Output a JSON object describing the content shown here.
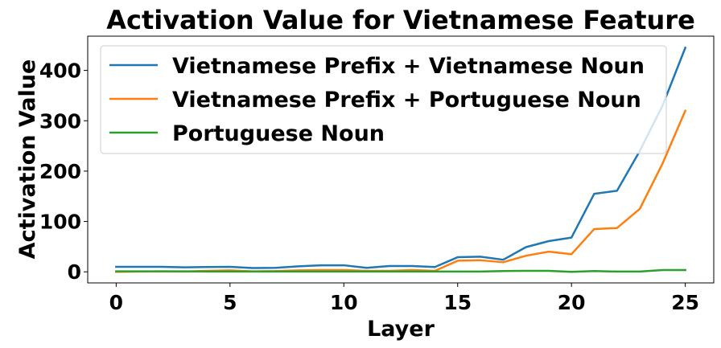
{
  "chart_data": {
    "type": "line",
    "title": "Activation Value for Vietnamese Feature",
    "xlabel": "Layer",
    "ylabel": "Activation Value",
    "x": [
      0,
      1,
      2,
      3,
      4,
      5,
      6,
      7,
      8,
      9,
      10,
      11,
      12,
      13,
      14,
      15,
      16,
      17,
      18,
      19,
      20,
      21,
      22,
      23,
      24,
      25
    ],
    "xlim": [
      -1.25,
      26.25
    ],
    "ylim": [
      -22,
      468
    ],
    "xticks": [
      0,
      5,
      10,
      15,
      20,
      25
    ],
    "yticks": [
      0,
      100,
      200,
      300,
      400
    ],
    "xtick_labels": [
      "0",
      "5",
      "10",
      "15",
      "20",
      "25"
    ],
    "ytick_labels": [
      "0",
      "100",
      "200",
      "300",
      "400"
    ],
    "grid": false,
    "legend_position": "upper-left",
    "series": [
      {
        "name": "Vietnamese Prefix + Vietnamese Noun",
        "color": "#1f77b4",
        "values": [
          10,
          10,
          10,
          9,
          9.5,
          10,
          7.5,
          8,
          11,
          13,
          13,
          8,
          11.5,
          11.5,
          9.5,
          29,
          30,
          24,
          49,
          61,
          68,
          155,
          161,
          240,
          330,
          445
        ]
      },
      {
        "name": "Vietnamese Prefix + Portuguese Noun",
        "color": "#ff7f0e",
        "values": [
          0,
          0.5,
          1,
          0.5,
          2,
          3,
          1,
          1.5,
          3,
          3.5,
          3.5,
          2,
          2,
          3.5,
          2,
          22,
          23,
          19,
          32,
          40,
          35,
          85,
          87,
          125,
          215,
          320
        ]
      },
      {
        "name": "Portuguese Noun",
        "color": "#2ca02c",
        "values": [
          1,
          1,
          1,
          1,
          0.5,
          0.5,
          0.5,
          0.5,
          0.5,
          0.5,
          0.5,
          0.5,
          0.5,
          0.5,
          0.5,
          0.5,
          0.5,
          1.5,
          2,
          2,
          0,
          1.5,
          0.5,
          0.5,
          3.5,
          3.5
        ]
      }
    ]
  }
}
